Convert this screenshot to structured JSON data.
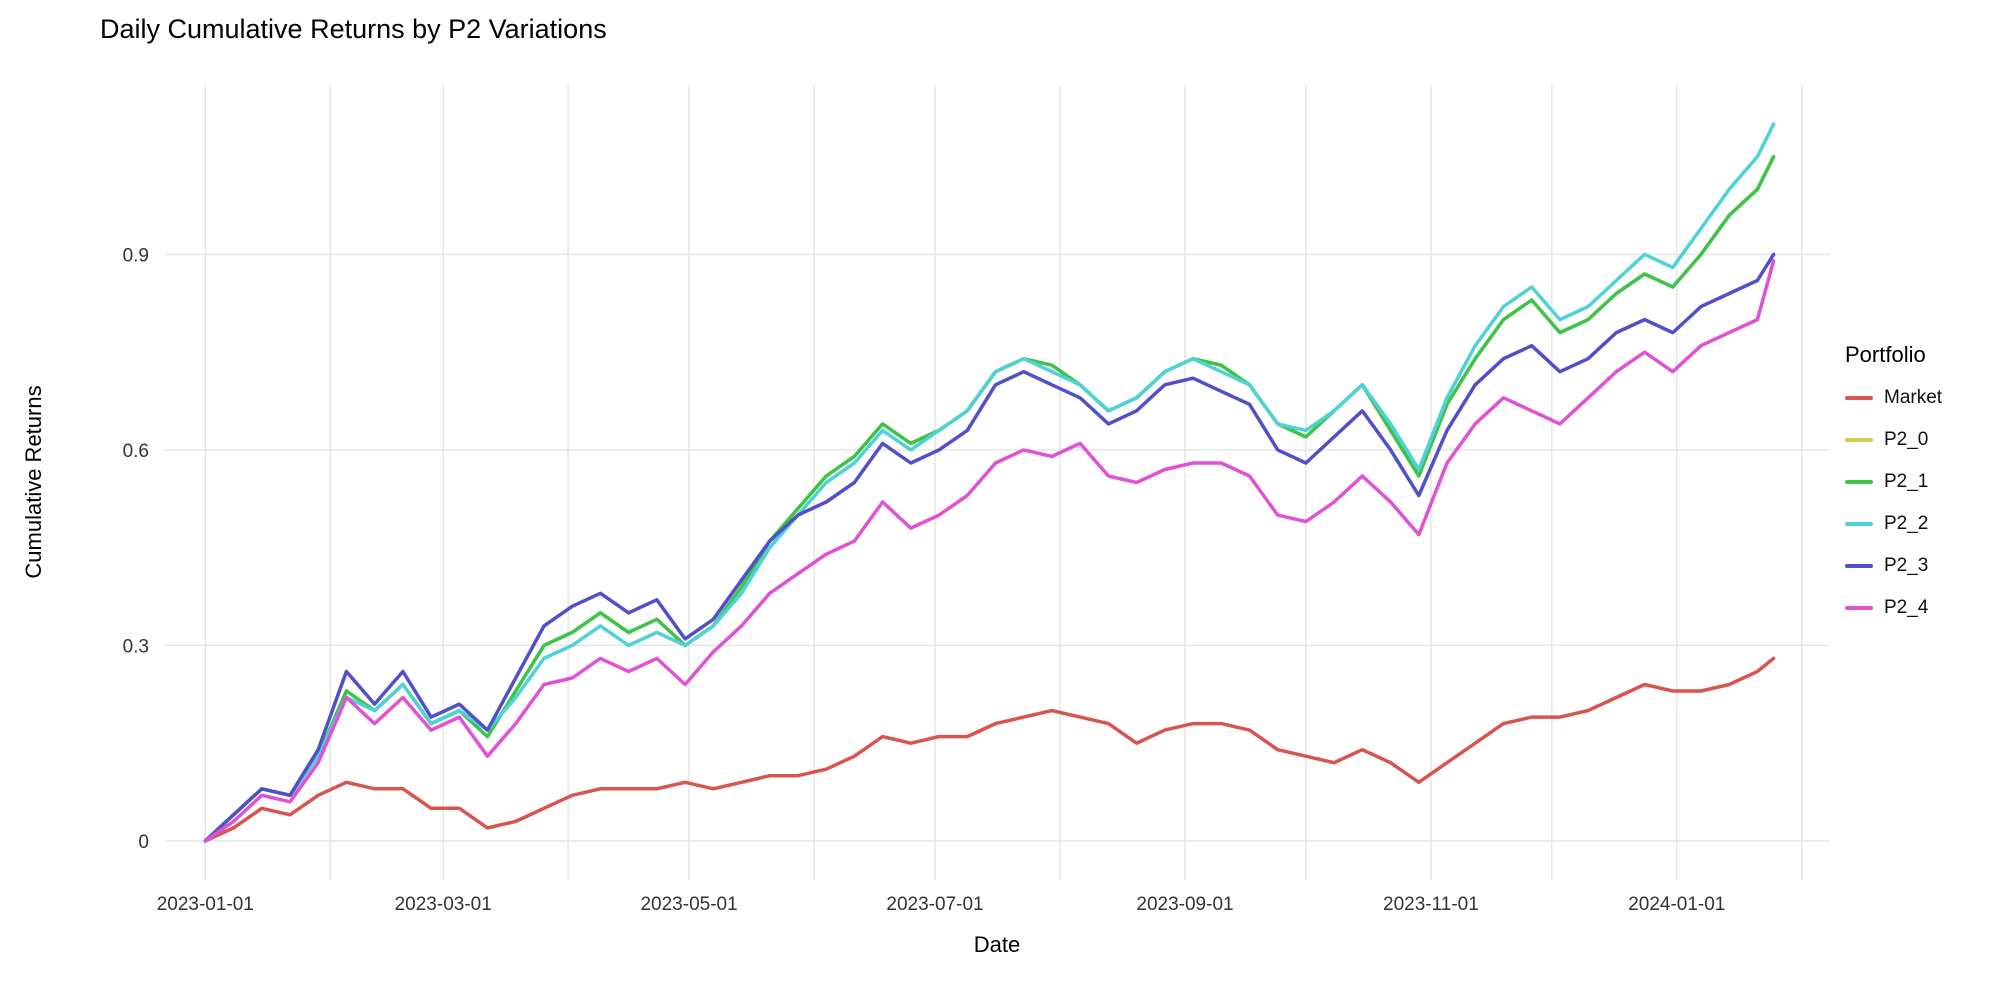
{
  "title": "Daily Cumulative Returns by P2 Variations",
  "axes": {
    "x_label": "Date",
    "y_label": "Cumulative Returns"
  },
  "legend": {
    "title": "Portfolio"
  },
  "chart_data": {
    "type": "line",
    "title": "Daily Cumulative Returns by P2 Variations",
    "xlabel": "Date",
    "ylabel": "Cumulative Returns",
    "legend_title": "Portfolio",
    "legend_position": "right",
    "grid": true,
    "background": "#ffffff",
    "gridline_color": "#e6e6e6",
    "x_tick_labels": [
      "2023-01-01",
      "2023-03-01",
      "2023-05-01",
      "2023-07-01",
      "2023-09-01",
      "2023-11-01",
      "2024-01-01"
    ],
    "y_ticks": [
      0,
      0.3,
      0.6,
      0.9
    ],
    "y_tick_labels": [
      "0",
      "0.3",
      "0.6",
      "0.9"
    ],
    "ylim": [
      -0.06,
      1.16
    ],
    "x": [
      "2023-01-01",
      "2023-01-08",
      "2023-01-15",
      "2023-01-22",
      "2023-01-29",
      "2023-02-05",
      "2023-02-12",
      "2023-02-19",
      "2023-02-26",
      "2023-03-05",
      "2023-03-12",
      "2023-03-19",
      "2023-03-26",
      "2023-04-02",
      "2023-04-09",
      "2023-04-16",
      "2023-04-23",
      "2023-04-30",
      "2023-05-07",
      "2023-05-14",
      "2023-05-21",
      "2023-05-28",
      "2023-06-04",
      "2023-06-11",
      "2023-06-18",
      "2023-06-25",
      "2023-07-02",
      "2023-07-09",
      "2023-07-16",
      "2023-07-23",
      "2023-07-30",
      "2023-08-06",
      "2023-08-13",
      "2023-08-20",
      "2023-08-27",
      "2023-09-03",
      "2023-09-10",
      "2023-09-17",
      "2023-09-24",
      "2023-10-01",
      "2023-10-08",
      "2023-10-15",
      "2023-10-22",
      "2023-10-29",
      "2023-11-05",
      "2023-11-12",
      "2023-11-19",
      "2023-11-26",
      "2023-12-03",
      "2023-12-10",
      "2023-12-17",
      "2023-12-24",
      "2023-12-31",
      "2024-01-07",
      "2024-01-14",
      "2024-01-21",
      "2024-01-25"
    ],
    "series": [
      {
        "name": "Market",
        "color": "#d9544f",
        "values": [
          0.0,
          0.02,
          0.05,
          0.04,
          0.07,
          0.09,
          0.08,
          0.08,
          0.05,
          0.05,
          0.02,
          0.03,
          0.05,
          0.07,
          0.08,
          0.08,
          0.08,
          0.09,
          0.08,
          0.09,
          0.1,
          0.1,
          0.11,
          0.13,
          0.16,
          0.15,
          0.16,
          0.16,
          0.18,
          0.19,
          0.2,
          0.19,
          0.18,
          0.15,
          0.17,
          0.18,
          0.18,
          0.17,
          0.14,
          0.13,
          0.12,
          0.14,
          0.12,
          0.09,
          0.12,
          0.15,
          0.18,
          0.19,
          0.19,
          0.2,
          0.22,
          0.24,
          0.23,
          0.23,
          0.24,
          0.26,
          0.28
        ]
      },
      {
        "name": "P2_0",
        "color": "#c9cf52",
        "values": [
          0.0,
          0.04,
          0.08,
          0.07,
          0.13,
          0.23,
          0.2,
          0.24,
          0.18,
          0.2,
          0.16,
          0.23,
          0.3,
          0.32,
          0.35,
          0.32,
          0.34,
          0.3,
          0.33,
          0.39,
          0.46,
          0.51,
          0.56,
          0.59,
          0.64,
          0.61,
          0.63,
          0.66,
          0.72,
          0.74,
          0.73,
          0.7,
          0.66,
          0.68,
          0.72,
          0.74,
          0.73,
          0.7,
          0.64,
          0.62,
          0.66,
          0.7,
          0.63,
          0.56,
          0.67,
          0.74,
          0.8,
          0.83,
          0.78,
          0.8,
          0.84,
          0.87,
          0.85,
          0.9,
          0.96,
          1.0,
          1.05
        ]
      },
      {
        "name": "P2_1",
        "color": "#3ec44d",
        "values": [
          0.0,
          0.04,
          0.08,
          0.07,
          0.13,
          0.23,
          0.2,
          0.24,
          0.18,
          0.2,
          0.16,
          0.23,
          0.3,
          0.32,
          0.35,
          0.32,
          0.34,
          0.3,
          0.33,
          0.39,
          0.46,
          0.51,
          0.56,
          0.59,
          0.64,
          0.61,
          0.63,
          0.66,
          0.72,
          0.74,
          0.73,
          0.7,
          0.66,
          0.68,
          0.72,
          0.74,
          0.73,
          0.7,
          0.64,
          0.62,
          0.66,
          0.7,
          0.63,
          0.56,
          0.67,
          0.74,
          0.8,
          0.83,
          0.78,
          0.8,
          0.84,
          0.87,
          0.85,
          0.9,
          0.96,
          1.0,
          1.05
        ]
      },
      {
        "name": "P2_2",
        "color": "#4fd2d5",
        "values": [
          0.0,
          0.04,
          0.08,
          0.07,
          0.13,
          0.22,
          0.2,
          0.24,
          0.18,
          0.2,
          0.17,
          0.22,
          0.28,
          0.3,
          0.33,
          0.3,
          0.32,
          0.3,
          0.33,
          0.38,
          0.45,
          0.5,
          0.55,
          0.58,
          0.63,
          0.6,
          0.63,
          0.66,
          0.72,
          0.74,
          0.72,
          0.7,
          0.66,
          0.68,
          0.72,
          0.74,
          0.72,
          0.7,
          0.64,
          0.63,
          0.66,
          0.7,
          0.64,
          0.57,
          0.68,
          0.76,
          0.82,
          0.85,
          0.8,
          0.82,
          0.86,
          0.9,
          0.88,
          0.94,
          1.0,
          1.05,
          1.1
        ]
      },
      {
        "name": "P2_3",
        "color": "#514fc9",
        "values": [
          0.0,
          0.04,
          0.08,
          0.07,
          0.14,
          0.26,
          0.21,
          0.26,
          0.19,
          0.21,
          0.17,
          0.25,
          0.33,
          0.36,
          0.38,
          0.35,
          0.37,
          0.31,
          0.34,
          0.4,
          0.46,
          0.5,
          0.52,
          0.55,
          0.61,
          0.58,
          0.6,
          0.63,
          0.7,
          0.72,
          0.7,
          0.68,
          0.64,
          0.66,
          0.7,
          0.71,
          0.69,
          0.67,
          0.6,
          0.58,
          0.62,
          0.66,
          0.6,
          0.53,
          0.63,
          0.7,
          0.74,
          0.76,
          0.72,
          0.74,
          0.78,
          0.8,
          0.78,
          0.82,
          0.84,
          0.86,
          0.9
        ]
      },
      {
        "name": "P2_4",
        "color": "#e151d6",
        "values": [
          0.0,
          0.03,
          0.07,
          0.06,
          0.12,
          0.22,
          0.18,
          0.22,
          0.17,
          0.19,
          0.13,
          0.18,
          0.24,
          0.25,
          0.28,
          0.26,
          0.28,
          0.24,
          0.29,
          0.33,
          0.38,
          0.41,
          0.44,
          0.46,
          0.52,
          0.48,
          0.5,
          0.53,
          0.58,
          0.6,
          0.59,
          0.61,
          0.56,
          0.55,
          0.57,
          0.58,
          0.58,
          0.56,
          0.5,
          0.49,
          0.52,
          0.56,
          0.52,
          0.47,
          0.58,
          0.64,
          0.68,
          0.66,
          0.64,
          0.68,
          0.72,
          0.75,
          0.72,
          0.76,
          0.78,
          0.8,
          0.89
        ]
      }
    ]
  }
}
